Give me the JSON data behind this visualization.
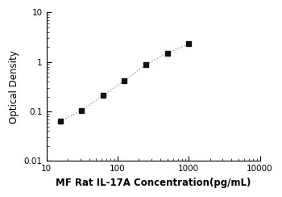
{
  "x_data": [
    15.625,
    31.25,
    62.5,
    125,
    250,
    500,
    1000
  ],
  "y_data": [
    0.063,
    0.105,
    0.21,
    0.42,
    0.88,
    1.5,
    2.3
  ],
  "xlabel": "MF Rat IL-17A Concentration(pg/mL)",
  "ylabel": "Optical Density",
  "xlim": [
    10,
    10000
  ],
  "ylim": [
    0.01,
    10
  ],
  "x_ticks": [
    10,
    100,
    1000,
    10000
  ],
  "y_ticks": [
    0.01,
    0.1,
    1,
    10
  ],
  "marker": "s",
  "marker_color": "#111111",
  "marker_size": 5,
  "line_color": "#999999",
  "line_style": "dotted",
  "line_width": 1.0,
  "background_color": "#ffffff",
  "axis_label_fontsize": 8.5,
  "tick_fontsize": 7.5
}
